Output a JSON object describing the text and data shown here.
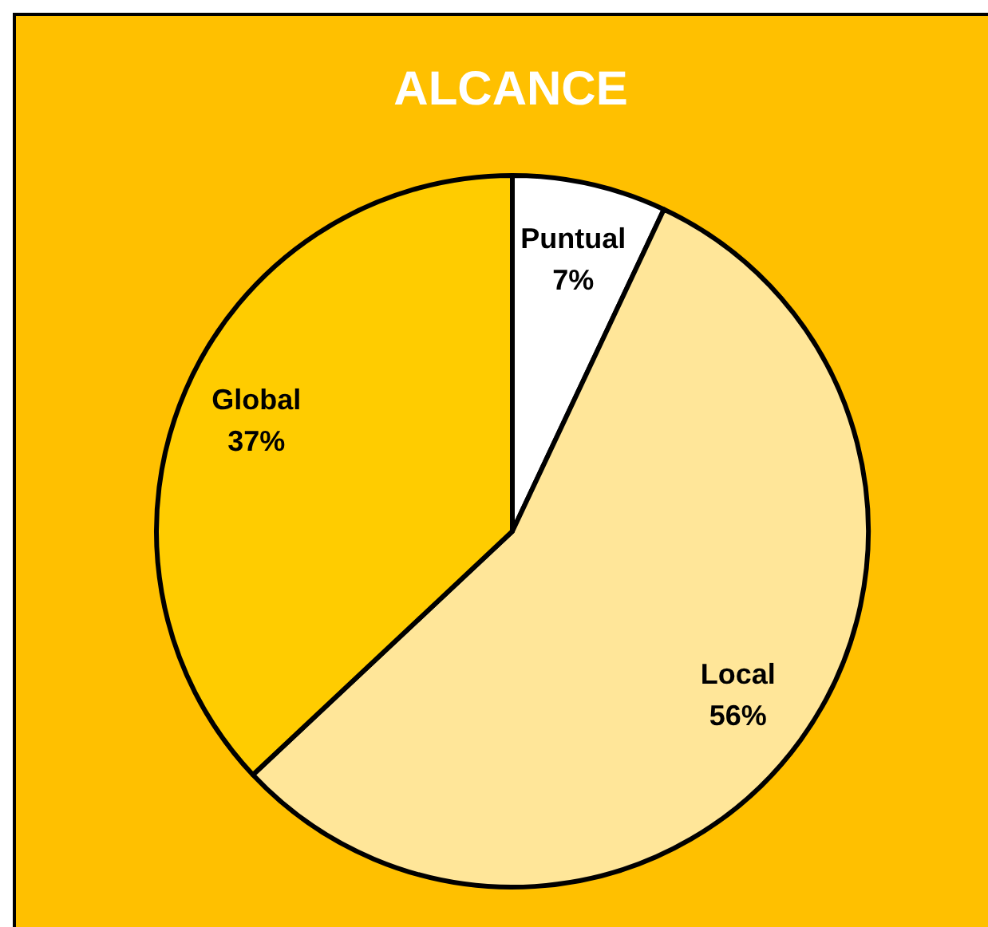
{
  "chart_data": {
    "type": "pie",
    "title": "ALCANCE",
    "categories": [
      "Puntual",
      "Local",
      "Global"
    ],
    "values": [
      7,
      56,
      37
    ],
    "colors": [
      "#ffffff",
      "#ffe699",
      "#ffcc00"
    ],
    "value_labels": [
      "7%",
      "56%",
      "37%"
    ]
  }
}
